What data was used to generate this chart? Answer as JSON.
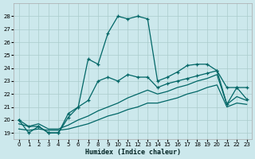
{
  "xlabel": "Humidex (Indice chaleur)",
  "bg_color": "#cce8ec",
  "grid_color": "#aacccc",
  "line_color": "#006666",
  "xlim": [
    -0.5,
    23.5
  ],
  "ylim": [
    18.5,
    29.0
  ],
  "xticks": [
    0,
    1,
    2,
    3,
    4,
    5,
    6,
    7,
    8,
    9,
    10,
    11,
    12,
    13,
    14,
    15,
    16,
    17,
    18,
    19,
    20,
    21,
    22,
    23
  ],
  "yticks": [
    19,
    20,
    21,
    22,
    23,
    24,
    25,
    26,
    27,
    28
  ],
  "series_spiky": [
    20.0,
    19.0,
    19.5,
    19.0,
    19.0,
    20.5,
    21.0,
    24.7,
    24.3,
    26.7,
    28.0,
    27.8,
    28.0,
    27.8,
    23.0,
    23.3,
    23.7,
    24.2,
    24.3,
    24.3,
    23.8,
    22.5,
    22.5,
    21.6
  ],
  "series_mid": [
    20.0,
    19.5,
    19.5,
    19.0,
    19.0,
    20.2,
    21.0,
    21.5,
    23.0,
    23.3,
    23.0,
    23.5,
    23.3,
    23.3,
    22.5,
    22.8,
    23.0,
    23.2,
    23.4,
    23.6,
    23.8,
    21.2,
    22.5,
    22.5
  ],
  "series_upper_linear": [
    19.7,
    19.5,
    19.7,
    19.3,
    19.3,
    19.6,
    20.0,
    20.3,
    20.7,
    21.0,
    21.3,
    21.7,
    22.0,
    22.3,
    22.0,
    22.2,
    22.5,
    22.7,
    23.0,
    23.2,
    23.5,
    21.2,
    21.8,
    21.5
  ],
  "series_lower_linear": [
    19.3,
    19.2,
    19.3,
    19.2,
    19.2,
    19.3,
    19.5,
    19.7,
    20.0,
    20.3,
    20.5,
    20.8,
    21.0,
    21.3,
    21.3,
    21.5,
    21.7,
    22.0,
    22.2,
    22.5,
    22.7,
    21.0,
    21.3,
    21.2
  ]
}
